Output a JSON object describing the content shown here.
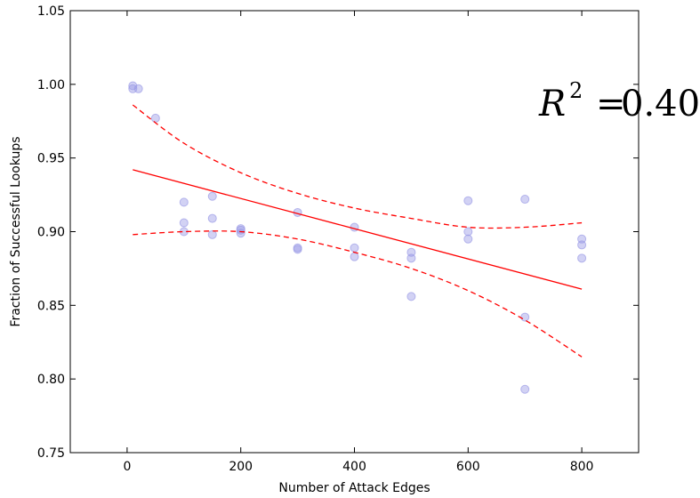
{
  "chart_data": {
    "type": "scatter",
    "title": "",
    "xlabel": "Number of Attack Edges",
    "ylabel": "Fraction of Successful Lookups",
    "xlim": [
      -100,
      900
    ],
    "ylim": [
      0.75,
      1.05
    ],
    "xticks": [
      0,
      200,
      400,
      600,
      800
    ],
    "yticks": [
      0.75,
      0.8,
      0.85,
      0.9,
      0.95,
      1.0,
      1.05
    ],
    "xtick_labels": [
      "0",
      "200",
      "400",
      "600",
      "800"
    ],
    "ytick_labels": [
      "0.75",
      "0.80",
      "0.85",
      "0.90",
      "0.95",
      "1.00",
      "1.05"
    ],
    "grid": false,
    "annotation": {
      "prefix": "R",
      "superscript": "2",
      "equals": "=",
      "value": "0.40"
    },
    "points": {
      "color": "#9b9be6",
      "x": [
        10,
        10,
        20,
        50,
        100,
        100,
        100,
        150,
        150,
        150,
        200,
        200,
        200,
        300,
        300,
        300,
        400,
        400,
        400,
        500,
        500,
        500,
        600,
        600,
        600,
        700,
        700,
        700,
        800,
        800,
        800
      ],
      "y": [
        0.999,
        0.997,
        0.997,
        0.977,
        0.92,
        0.906,
        0.9,
        0.924,
        0.909,
        0.898,
        0.902,
        0.901,
        0.899,
        0.913,
        0.889,
        0.888,
        0.903,
        0.889,
        0.883,
        0.886,
        0.882,
        0.856,
        0.921,
        0.9,
        0.895,
        0.922,
        0.842,
        0.793,
        0.895,
        0.891,
        0.882
      ]
    },
    "fit_line": {
      "color": "#ff0000",
      "x": [
        10,
        800
      ],
      "y": [
        0.942,
        0.861
      ]
    },
    "upper_band": {
      "color": "#ff0000",
      "x": [
        10,
        100,
        200,
        300,
        400,
        500,
        600,
        700,
        800
      ],
      "y": [
        0.986,
        0.96,
        0.94,
        0.926,
        0.916,
        0.909,
        0.903,
        0.903,
        0.906
      ]
    },
    "lower_band": {
      "color": "#ff0000",
      "x": [
        10,
        100,
        200,
        300,
        400,
        500,
        600,
        700,
        800
      ],
      "y": [
        0.898,
        0.9,
        0.9,
        0.895,
        0.886,
        0.875,
        0.86,
        0.84,
        0.815
      ]
    }
  }
}
